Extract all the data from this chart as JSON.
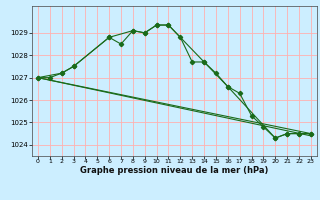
{
  "xlabel": "Graphe pression niveau de la mer (hPa)",
  "background_color": "#cceeff",
  "grid_color": "#ffb0b0",
  "line_color": "#1a6b1a",
  "x_ticks": [
    0,
    1,
    2,
    3,
    4,
    5,
    6,
    7,
    8,
    9,
    10,
    11,
    12,
    13,
    14,
    15,
    16,
    17,
    18,
    19,
    20,
    21,
    22,
    23
  ],
  "ylim": [
    1023.5,
    1030.2
  ],
  "yticks": [
    1024,
    1025,
    1026,
    1027,
    1028,
    1029
  ],
  "line1_x": [
    0,
    1,
    2,
    3,
    6,
    8,
    9,
    10,
    11,
    14,
    16,
    20,
    21,
    22,
    23
  ],
  "line1_y": [
    1027.0,
    1027.0,
    1027.2,
    1027.5,
    1028.8,
    1029.1,
    1029.0,
    1029.35,
    1029.35,
    1027.7,
    1026.6,
    1024.3,
    1024.5,
    1024.5,
    1024.5
  ],
  "line2_x": [
    0,
    2,
    3,
    6,
    7,
    8,
    9,
    10,
    11,
    12,
    13,
    14,
    15,
    16,
    17,
    18,
    19,
    20,
    21,
    22,
    23
  ],
  "line2_y": [
    1027.0,
    1027.2,
    1027.5,
    1028.8,
    1028.5,
    1029.1,
    1029.0,
    1029.35,
    1029.35,
    1028.8,
    1027.7,
    1027.7,
    1027.2,
    1026.6,
    1026.3,
    1025.3,
    1024.8,
    1024.3,
    1024.5,
    1024.5,
    1024.5
  ],
  "line3_x": [
    0,
    23
  ],
  "line3_y": [
    1027.0,
    1024.5
  ],
  "line4_x": [
    0,
    23
  ],
  "line4_y": [
    1027.0,
    1024.4
  ]
}
